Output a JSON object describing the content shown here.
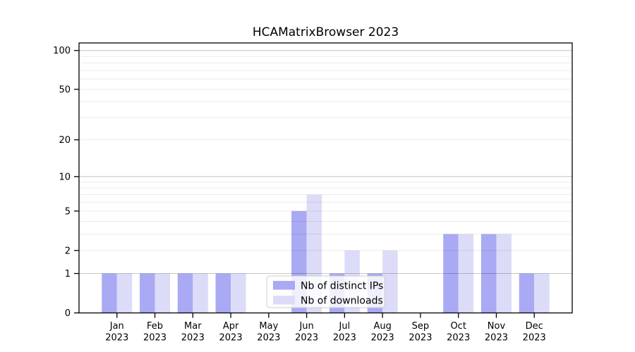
{
  "chart_data": {
    "type": "bar",
    "title": "HCAMatrixBrowser 2023",
    "categories": [
      "Jan 2023",
      "Feb 2023",
      "Mar 2023",
      "Apr 2023",
      "May 2023",
      "Jun 2023",
      "Jul 2023",
      "Aug 2023",
      "Sep 2023",
      "Oct 2023",
      "Nov 2023",
      "Dec 2023"
    ],
    "series": [
      {
        "name": "Nb of distinct IPs",
        "color": "#a9a9f4",
        "values": [
          1,
          1,
          1,
          1,
          0,
          5,
          1,
          1,
          0,
          3,
          3,
          1
        ]
      },
      {
        "name": "Nb of downloads",
        "color": "#dcdcf8",
        "values": [
          1,
          1,
          1,
          1,
          0,
          7,
          2,
          2,
          0,
          3,
          3,
          1
        ]
      }
    ],
    "xlabel": "",
    "ylabel": "",
    "yscale": "log(1+x)",
    "ylim": [
      0,
      105
    ],
    "y_tick_values": [
      0,
      1,
      2,
      5,
      10,
      20,
      50,
      100
    ],
    "y_tick_labels": [
      "0",
      "1",
      "2",
      "5",
      "10",
      "20",
      "50",
      "100"
    ],
    "y_gridlines_major": [
      1,
      10,
      100
    ],
    "y_gridlines_minor": [
      2,
      3,
      4,
      5,
      6,
      7,
      8,
      9,
      20,
      30,
      40,
      50,
      60,
      70,
      80,
      90
    ],
    "grid": "horizontal",
    "legend_position": "inside-bottom-center"
  },
  "colors": {
    "background": "#ffffff",
    "bar_distinct_ips": "#a9a9f4",
    "bar_downloads": "#dcdcf8",
    "grid_minor": "rgba(0,0,0,0.08)",
    "grid_major": "rgba(0,0,0,0.22)",
    "axis": "#000000",
    "legend_border": "#cccccc",
    "legend_background": "rgba(255,255,255,0.82)"
  }
}
